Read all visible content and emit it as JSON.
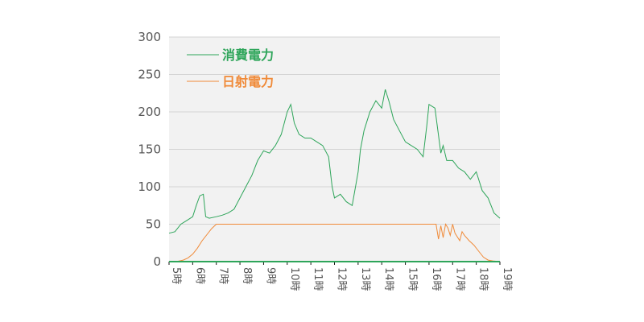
{
  "chart_data": {
    "type": "line",
    "title": "",
    "xlabel": "",
    "ylabel": "",
    "ylim": [
      0,
      300
    ],
    "xlim": [
      5,
      19
    ],
    "yticks": [
      "0",
      "50",
      "100",
      "150",
      "200",
      "250",
      "300"
    ],
    "xticks": [
      "5時",
      "6時",
      "7時",
      "8時",
      "9時",
      "10時",
      "11時",
      "12時",
      "13時",
      "14時",
      "15時",
      "16時",
      "17時",
      "18時",
      "19時"
    ],
    "grid": true,
    "legend_position": "top-left",
    "colors": {
      "consumption": "#2ea55a",
      "solar": "#f08a38",
      "grid": "#d4d4d4",
      "plot_bg": "#f2f2f2",
      "axis": "#111111"
    },
    "series": [
      {
        "name": "消費電力",
        "x": [
          5.0,
          5.25,
          5.5,
          5.75,
          6.0,
          6.15,
          6.3,
          6.45,
          6.55,
          6.7,
          7.0,
          7.25,
          7.5,
          7.75,
          8.0,
          8.25,
          8.5,
          8.75,
          9.0,
          9.25,
          9.5,
          9.75,
          10.0,
          10.15,
          10.3,
          10.5,
          10.75,
          11.0,
          11.25,
          11.5,
          11.75,
          11.9,
          12.0,
          12.25,
          12.5,
          12.75,
          13.0,
          13.1,
          13.25,
          13.5,
          13.75,
          14.0,
          14.15,
          14.3,
          14.5,
          14.75,
          15.0,
          15.25,
          15.5,
          15.75,
          15.9,
          16.0,
          16.25,
          16.5,
          16.6,
          16.75,
          17.0,
          17.25,
          17.5,
          17.75,
          18.0,
          18.25,
          18.5,
          18.75,
          19.0
        ],
        "values": [
          38,
          40,
          50,
          55,
          60,
          75,
          88,
          90,
          60,
          58,
          60,
          62,
          65,
          70,
          85,
          100,
          115,
          135,
          148,
          145,
          155,
          170,
          200,
          210,
          185,
          170,
          165,
          165,
          160,
          155,
          140,
          100,
          85,
          90,
          80,
          75,
          120,
          150,
          175,
          200,
          215,
          205,
          230,
          215,
          190,
          175,
          160,
          155,
          150,
          140,
          180,
          210,
          205,
          145,
          155,
          135,
          135,
          125,
          120,
          110,
          120,
          95,
          85,
          65,
          58
        ]
      },
      {
        "name": "日射電力",
        "x": [
          5.0,
          5.3,
          5.6,
          5.8,
          6.0,
          6.2,
          6.4,
          6.6,
          6.8,
          7.0,
          7.2,
          7.5,
          8.0,
          9.0,
          10.0,
          11.0,
          12.0,
          13.0,
          14.0,
          15.0,
          16.0,
          16.3,
          16.4,
          16.5,
          16.6,
          16.7,
          16.8,
          16.9,
          17.0,
          17.1,
          17.3,
          17.4,
          17.5,
          17.7,
          17.9,
          18.1,
          18.3,
          18.5,
          18.7,
          19.0
        ],
        "values": [
          0,
          0,
          2,
          5,
          10,
          18,
          28,
          36,
          44,
          50,
          50,
          50,
          50,
          50,
          50,
          50,
          50,
          50,
          50,
          50,
          50,
          50,
          30,
          48,
          32,
          50,
          45,
          35,
          50,
          38,
          28,
          40,
          35,
          28,
          22,
          14,
          6,
          2,
          1,
          0
        ]
      }
    ]
  }
}
